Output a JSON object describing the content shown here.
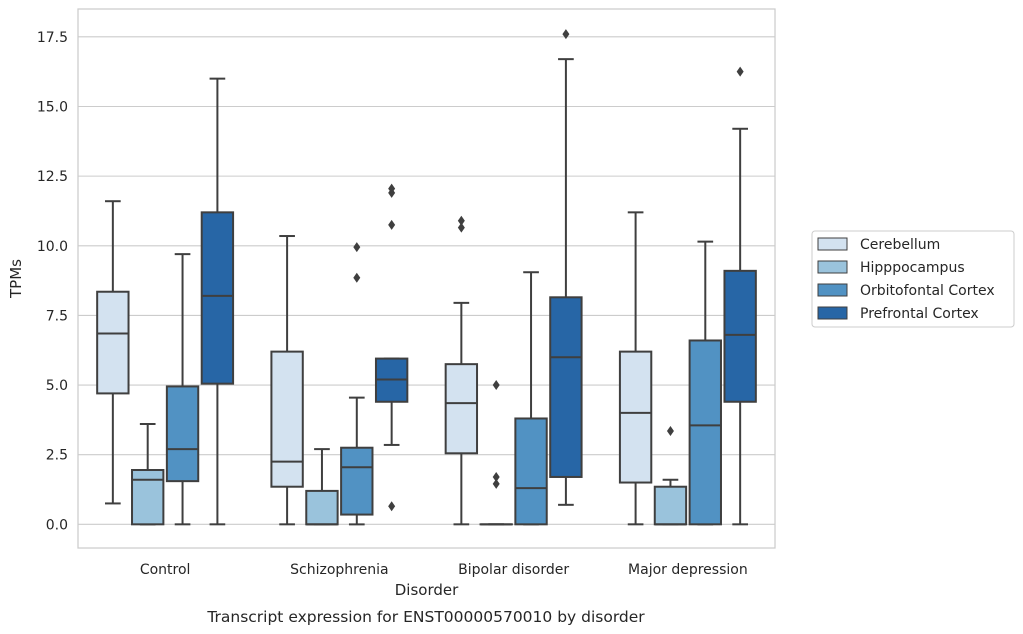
{
  "chart_data": {
    "type": "box",
    "caption": "Transcript expression for ENST00000570010 by disorder",
    "xlabel": "Disorder",
    "ylabel": "TPMs",
    "ylim": [
      -0.85,
      18.5
    ],
    "yticks": [
      0.0,
      2.5,
      5.0,
      7.5,
      10.0,
      12.5,
      15.0,
      17.5
    ],
    "ytick_labels": [
      "0.0",
      "2.5",
      "5.0",
      "7.5",
      "10.0",
      "12.5",
      "15.0",
      "17.5"
    ],
    "grid": "horizontal",
    "legend_position": "right",
    "categories": [
      "Control",
      "Schizophrenia",
      "Bipolar disorder",
      "Major depression"
    ],
    "series": [
      {
        "name": "Cerebellum",
        "color": "#d3e2f0",
        "boxes": [
          {
            "whisker_low": 0.75,
            "q1": 4.7,
            "median": 6.85,
            "q3": 8.35,
            "whisker_high": 11.6,
            "outliers": []
          },
          {
            "whisker_low": 0.0,
            "q1": 1.35,
            "median": 2.25,
            "q3": 6.2,
            "whisker_high": 10.35,
            "outliers": []
          },
          {
            "whisker_low": 0.0,
            "q1": 2.55,
            "median": 4.35,
            "q3": 5.75,
            "whisker_high": 7.95,
            "outliers": [
              10.65,
              10.9
            ]
          },
          {
            "whisker_low": 0.0,
            "q1": 1.5,
            "median": 4.0,
            "q3": 6.2,
            "whisker_high": 11.2,
            "outliers": []
          }
        ]
      },
      {
        "name": "Hipppocampus",
        "color": "#9ac3dc",
        "boxes": [
          {
            "whisker_low": 0.0,
            "q1": 0.0,
            "median": 1.6,
            "q3": 1.95,
            "whisker_high": 3.6,
            "outliers": []
          },
          {
            "whisker_low": 0.0,
            "q1": 0.0,
            "median": 0.0,
            "q3": 1.2,
            "whisker_high": 2.7,
            "outliers": []
          },
          {
            "whisker_low": 0.0,
            "q1": 0.0,
            "median": 0.0,
            "q3": 0.0,
            "whisker_high": 0.0,
            "outliers": [
              1.45,
              1.7,
              5.0
            ]
          },
          {
            "whisker_low": 0.0,
            "q1": 0.0,
            "median": 0.0,
            "q3": 1.35,
            "whisker_high": 1.6,
            "outliers": [
              3.35
            ]
          }
        ]
      },
      {
        "name": "Orbitofontal Cortex",
        "color": "#5192c3",
        "boxes": [
          {
            "whisker_low": 0.0,
            "q1": 1.55,
            "median": 2.7,
            "q3": 4.95,
            "whisker_high": 9.7,
            "outliers": []
          },
          {
            "whisker_low": 0.0,
            "q1": 0.35,
            "median": 2.05,
            "q3": 2.75,
            "whisker_high": 4.55,
            "outliers": [
              8.85,
              9.95
            ]
          },
          {
            "whisker_low": 0.0,
            "q1": 0.0,
            "median": 1.3,
            "q3": 3.8,
            "whisker_high": 9.05,
            "outliers": []
          },
          {
            "whisker_low": 0.0,
            "q1": 0.0,
            "median": 3.55,
            "q3": 6.6,
            "whisker_high": 10.15,
            "outliers": []
          }
        ]
      },
      {
        "name": "Prefrontal Cortex",
        "color": "#2766a6",
        "boxes": [
          {
            "whisker_low": 0.0,
            "q1": 5.05,
            "median": 8.2,
            "q3": 11.2,
            "whisker_high": 16.0,
            "outliers": []
          },
          {
            "whisker_low": 2.85,
            "q1": 4.4,
            "median": 5.2,
            "q3": 5.95,
            "whisker_high": 5.95,
            "outliers": [
              0.65,
              10.75,
              11.9,
              12.05
            ]
          },
          {
            "whisker_low": 0.7,
            "q1": 1.7,
            "median": 6.0,
            "q3": 8.15,
            "whisker_high": 16.7,
            "outliers": [
              17.6
            ]
          },
          {
            "whisker_low": 0.0,
            "q1": 4.4,
            "median": 6.8,
            "q3": 9.1,
            "whisker_high": 14.2,
            "outliers": [
              16.25
            ]
          }
        ]
      }
    ]
  }
}
